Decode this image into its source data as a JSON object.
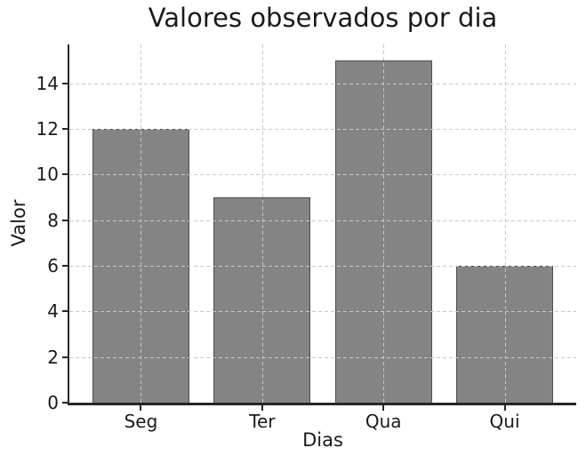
{
  "chart_data": {
    "type": "bar",
    "title": "Valores observados por dia",
    "xlabel": "Dias",
    "ylabel": "Valor",
    "categories": [
      "Seg",
      "Ter",
      "Qua",
      "Qui"
    ],
    "values": [
      12,
      9,
      15,
      6
    ],
    "yticks": [
      0,
      2,
      4,
      6,
      8,
      10,
      12,
      14
    ],
    "ylim": [
      0,
      15.7
    ],
    "grid": true,
    "grid_style": "dashed",
    "legend": false,
    "colors": {
      "bar_fill": "#848484",
      "bar_edge": "#4e4e4e",
      "grid": "#c8c8c8",
      "axis": "#262626",
      "text": "#1a1a1a",
      "background": "#ffffff"
    }
  }
}
